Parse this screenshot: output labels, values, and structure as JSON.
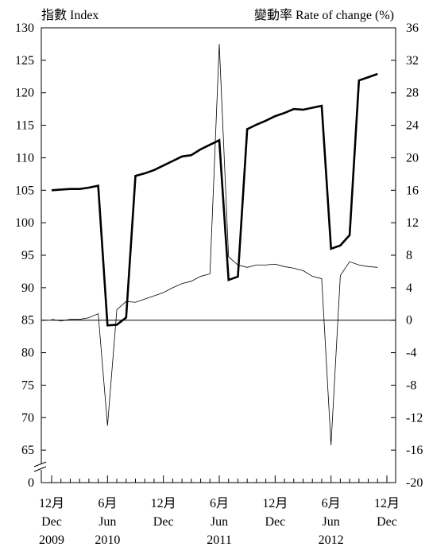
{
  "chart_data": {
    "type": "line",
    "left_axis_title": "指數 Index",
    "right_axis_title": "變動率 Rate of change (%)",
    "left_ticks": [
      "130",
      "125",
      "120",
      "115",
      "110",
      "105",
      "100",
      "95",
      "90",
      "85",
      "80",
      "75",
      "70",
      "65",
      "0"
    ],
    "right_ticks": [
      "36",
      "32",
      "28",
      "24",
      "20",
      "16",
      "12",
      "8",
      "4",
      "0",
      "-4",
      "-8",
      "-12",
      "-16",
      "-20"
    ],
    "left_range": [
      65,
      130
    ],
    "left_axis_break": true,
    "right_range": [
      -20,
      36
    ],
    "zero_line_at": 0,
    "x_labels": [
      {
        "month": "12月",
        "en": "Dec",
        "year": "2009"
      },
      {
        "month": "6月",
        "en": "Jun",
        "year": "2010"
      },
      {
        "month": "12月",
        "en": "Dec",
        "year": ""
      },
      {
        "month": "6月",
        "en": "Jun",
        "year": "2011"
      },
      {
        "month": "12月",
        "en": "Dec",
        "year": ""
      },
      {
        "month": "6月",
        "en": "Jun",
        "year": "2012"
      },
      {
        "month": "12月",
        "en": "Dec",
        "year": ""
      }
    ],
    "months": [
      "2009-12",
      "2010-01",
      "2010-02",
      "2010-03",
      "2010-04",
      "2010-05",
      "2010-06",
      "2010-07",
      "2010-08",
      "2010-09",
      "2010-10",
      "2010-11",
      "2010-12",
      "2011-01",
      "2011-02",
      "2011-03",
      "2011-04",
      "2011-05",
      "2011-06",
      "2011-07",
      "2011-08",
      "2011-09",
      "2011-10",
      "2011-11",
      "2011-12",
      "2012-01",
      "2012-02",
      "2012-03",
      "2012-04",
      "2012-05",
      "2012-06",
      "2012-07",
      "2012-08",
      "2012-09",
      "2012-10",
      "2012-11",
      "2012-12"
    ],
    "series": [
      {
        "axis": "left",
        "values": [
          105.0,
          105.1,
          105.2,
          105.2,
          105.4,
          105.7,
          84.2,
          84.3,
          85.4,
          107.2,
          107.6,
          108.1,
          108.8,
          109.5,
          110.2,
          110.4,
          111.3,
          112.0,
          112.7,
          91.2,
          91.7,
          114.4,
          115.1,
          115.7,
          116.4,
          116.9,
          117.5,
          117.4,
          117.7,
          118.0,
          96.0,
          96.5,
          98.1,
          121.9,
          122.4,
          122.9,
          null
        ]
      },
      {
        "axis": "right",
        "values": [
          0.1,
          -0.1,
          0.1,
          0.1,
          0.3,
          0.8,
          -13.0,
          1.3,
          2.3,
          2.2,
          2.6,
          3.0,
          3.4,
          4.0,
          4.5,
          4.8,
          5.4,
          5.7,
          34.0,
          7.8,
          6.8,
          6.5,
          6.8,
          6.8,
          6.9,
          6.6,
          6.4,
          6.1,
          5.4,
          5.1,
          -15.4,
          5.5,
          7.2,
          6.8,
          6.6,
          6.5,
          null
        ]
      }
    ]
  }
}
